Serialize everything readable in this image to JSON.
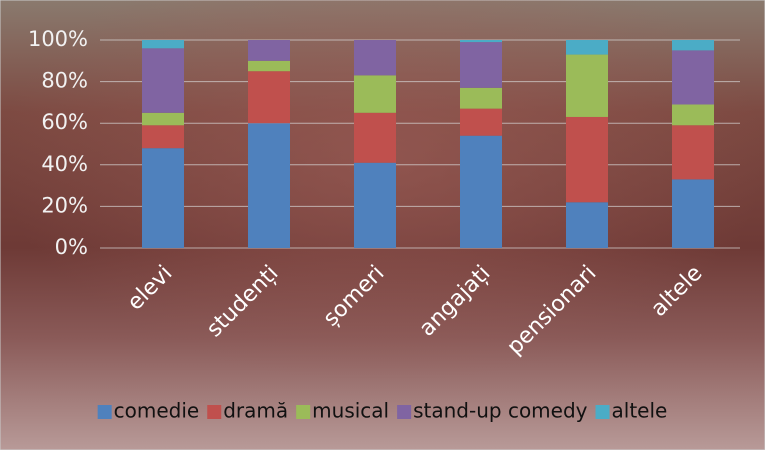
{
  "chart_data": {
    "type": "stacked-bar-100",
    "categories": [
      "elevi",
      "studenți",
      "șomeri",
      "angajați",
      "pensionari",
      "altele"
    ],
    "series": [
      {
        "name": "comedie",
        "color": "#4f81bd",
        "values": [
          48,
          60,
          41,
          54,
          22,
          33
        ]
      },
      {
        "name": "dramă",
        "color": "#c0504d",
        "values": [
          11,
          25,
          24,
          13,
          41,
          26
        ]
      },
      {
        "name": "musical",
        "color": "#9bbb59",
        "values": [
          6,
          5,
          18,
          10,
          30,
          10
        ]
      },
      {
        "name": "stand-up comedy",
        "color": "#8064a2",
        "values": [
          31,
          10,
          17,
          22,
          0,
          26
        ]
      },
      {
        "name": "altele",
        "color": "#4bacc6",
        "values": [
          4,
          0,
          0,
          1,
          7,
          5
        ]
      }
    ],
    "ylim": [
      0,
      100
    ],
    "yticks": [
      {
        "value": 0,
        "label": "0%"
      },
      {
        "value": 20,
        "label": "20%"
      },
      {
        "value": 40,
        "label": "40%"
      },
      {
        "value": 60,
        "label": "60%"
      },
      {
        "value": 80,
        "label": "80%"
      },
      {
        "value": 100,
        "label": "100%"
      }
    ],
    "grid": true,
    "legend": "bottom"
  }
}
